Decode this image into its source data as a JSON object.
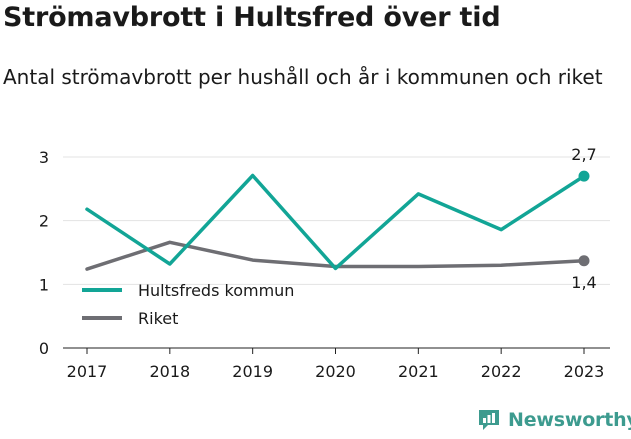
{
  "title": "Strömavbrott i Hultsfred över tid",
  "subtitle": "Antal strömavbrott per hushåll och år i kommunen och riket",
  "brand": "Newsworthy",
  "colors": {
    "hultsfred": "#12a596",
    "riket": "#6e6e73",
    "grid": "#e3e3e3",
    "axis": "#222222"
  },
  "chart_data": {
    "type": "line",
    "x": [
      "2017",
      "2018",
      "2019",
      "2020",
      "2021",
      "2022",
      "2023"
    ],
    "ylim": [
      0,
      3
    ],
    "yticks": [
      0,
      1,
      2,
      3
    ],
    "grid": true,
    "legend_position": "bottom-left",
    "series": [
      {
        "name": "Hultsfreds kommun",
        "color": "#12a596",
        "values": [
          2.18,
          1.32,
          2.71,
          1.25,
          2.42,
          1.86,
          2.7
        ],
        "end_label": "2,7"
      },
      {
        "name": "Riket",
        "color": "#6e6e73",
        "values": [
          1.24,
          1.66,
          1.38,
          1.28,
          1.28,
          1.3,
          1.37
        ],
        "end_label": "1,4"
      }
    ]
  }
}
